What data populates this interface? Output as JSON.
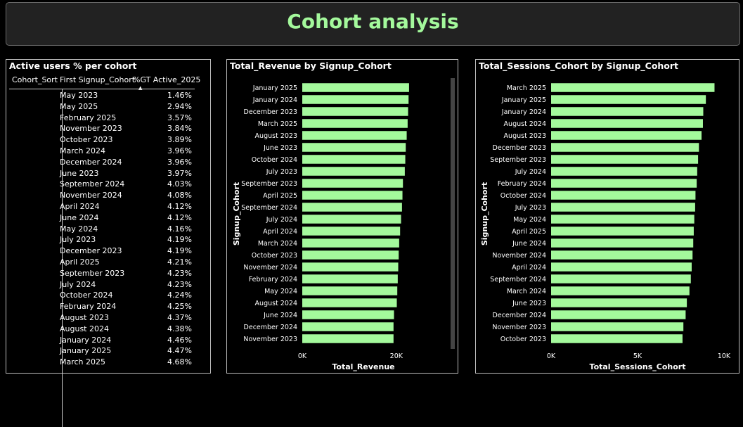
{
  "page_title": "Cohort analysis",
  "colors": {
    "accent": "#a4f99c",
    "bar": "#a4f99c",
    "background": "#000000",
    "banner": "#222222"
  },
  "table": {
    "title": "Active users % per cohort",
    "columns": [
      "Cohort_Sort",
      "First Signup_Cohort",
      "%GT Active_2025"
    ],
    "sort_indicator": "▲",
    "rows": [
      {
        "cohort": "May 2023",
        "value": "1.46%"
      },
      {
        "cohort": "May 2025",
        "value": "2.94%"
      },
      {
        "cohort": "February 2025",
        "value": "3.57%"
      },
      {
        "cohort": "November 2023",
        "value": "3.84%"
      },
      {
        "cohort": "October 2023",
        "value": "3.89%"
      },
      {
        "cohort": "March 2024",
        "value": "3.96%"
      },
      {
        "cohort": "December 2024",
        "value": "3.96%"
      },
      {
        "cohort": "June 2023",
        "value": "3.97%"
      },
      {
        "cohort": "September 2024",
        "value": "4.03%"
      },
      {
        "cohort": "November 2024",
        "value": "4.08%"
      },
      {
        "cohort": "April 2024",
        "value": "4.12%"
      },
      {
        "cohort": "June 2024",
        "value": "4.12%"
      },
      {
        "cohort": "May 2024",
        "value": "4.16%"
      },
      {
        "cohort": "July 2023",
        "value": "4.19%"
      },
      {
        "cohort": "December 2023",
        "value": "4.19%"
      },
      {
        "cohort": "April 2025",
        "value": "4.21%"
      },
      {
        "cohort": "September 2023",
        "value": "4.23%"
      },
      {
        "cohort": "July 2024",
        "value": "4.23%"
      },
      {
        "cohort": "October 2024",
        "value": "4.24%"
      },
      {
        "cohort": "February 2024",
        "value": "4.25%"
      },
      {
        "cohort": "August 2023",
        "value": "4.37%"
      },
      {
        "cohort": "August 2024",
        "value": "4.38%"
      },
      {
        "cohort": "January 2024",
        "value": "4.46%"
      },
      {
        "cohort": "January 2025",
        "value": "4.47%"
      },
      {
        "cohort": "March 2025",
        "value": "4.68%"
      }
    ]
  },
  "chart_data": [
    {
      "type": "bar",
      "orientation": "horizontal",
      "title": "Total_Revenue by Signup_Cohort",
      "xlabel": "Total_Revenue",
      "ylabel": "Signup_Cohort",
      "xlim": [
        0,
        26000
      ],
      "xticks": [
        0,
        20000
      ],
      "xtick_labels": [
        "0K",
        "20K"
      ],
      "grid": false,
      "categories": [
        "January 2025",
        "January 2024",
        "December 2023",
        "March 2025",
        "August 2023",
        "June 2023",
        "October 2024",
        "July 2023",
        "September 2023",
        "April 2025",
        "September 2024",
        "July 2024",
        "April 2024",
        "March 2024",
        "October 2023",
        "November 2024",
        "February 2024",
        "May 2024",
        "August 2024",
        "June 2024",
        "December 2024",
        "November 2023"
      ],
      "values": [
        22700,
        22600,
        22500,
        22400,
        22200,
        22000,
        21900,
        21800,
        21400,
        21300,
        21200,
        21000,
        20800,
        20600,
        20500,
        20400,
        20300,
        20200,
        20100,
        19500,
        19400,
        19400
      ]
    },
    {
      "type": "bar",
      "orientation": "horizontal",
      "title": "Total_Sessions_Cohort by Signup_Cohort",
      "xlabel": "Total_Sessions_Cohort",
      "ylabel": "Signup_Cohort",
      "xlim": [
        0,
        10000
      ],
      "xticks": [
        0,
        5000,
        10000
      ],
      "xtick_labels": [
        "0K",
        "5K",
        "10K"
      ],
      "grid": false,
      "categories": [
        "March 2025",
        "January 2025",
        "January 2024",
        "August 2024",
        "August 2023",
        "December 2023",
        "September 2023",
        "July 2024",
        "February 2024",
        "October 2024",
        "July 2023",
        "May 2024",
        "April 2025",
        "June 2024",
        "November 2024",
        "April 2024",
        "September 2024",
        "March 2024",
        "June 2023",
        "December 2024",
        "November 2023",
        "October 2023"
      ],
      "values": [
        9450,
        8950,
        8800,
        8780,
        8700,
        8550,
        8500,
        8450,
        8420,
        8350,
        8330,
        8280,
        8250,
        8220,
        8180,
        8130,
        8080,
        8000,
        7850,
        7780,
        7650,
        7600
      ]
    }
  ]
}
